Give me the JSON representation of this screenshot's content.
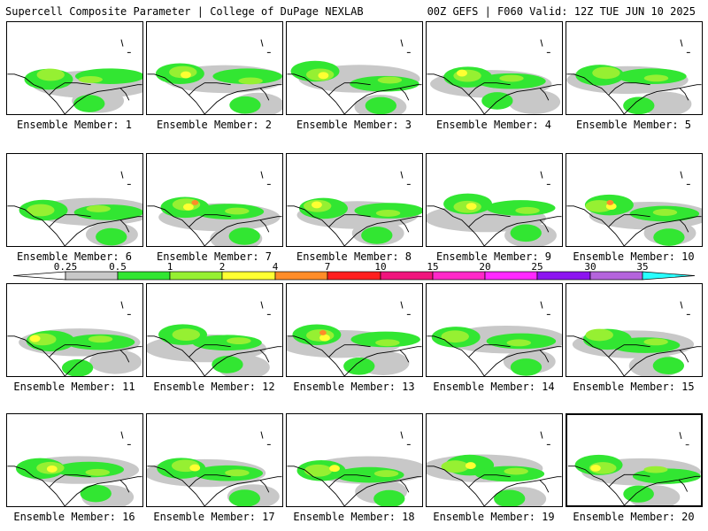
{
  "header": {
    "left": "Supercell Composite Parameter | College of DuPage NEXLAB",
    "right": "00Z GEFS | F060 Valid: 12Z TUE JUN 10 2025"
  },
  "members": [
    {
      "label": "Ensemble Member: 1",
      "selected": false
    },
    {
      "label": "Ensemble Member: 2",
      "selected": false
    },
    {
      "label": "Ensemble Member: 3",
      "selected": false
    },
    {
      "label": "Ensemble Member: 4",
      "selected": false
    },
    {
      "label": "Ensemble Member: 5",
      "selected": false
    },
    {
      "label": "Ensemble Member: 6",
      "selected": false
    },
    {
      "label": "Ensemble Member: 7",
      "selected": false
    },
    {
      "label": "Ensemble Member: 8",
      "selected": false
    },
    {
      "label": "Ensemble Member: 9",
      "selected": false
    },
    {
      "label": "Ensemble Member: 10",
      "selected": false
    },
    {
      "label": "Ensemble Member: 11",
      "selected": false
    },
    {
      "label": "Ensemble Member: 12",
      "selected": false
    },
    {
      "label": "Ensemble Member: 13",
      "selected": false
    },
    {
      "label": "Ensemble Member: 14",
      "selected": false
    },
    {
      "label": "Ensemble Member: 15",
      "selected": false
    },
    {
      "label": "Ensemble Member: 16",
      "selected": false
    },
    {
      "label": "Ensemble Member: 17",
      "selected": false
    },
    {
      "label": "Ensemble Member: 18",
      "selected": false
    },
    {
      "label": "Ensemble Member: 19",
      "selected": false
    },
    {
      "label": "Ensemble Member: 20",
      "selected": true
    }
  ],
  "legend": {
    "ticks": [
      "0.25",
      "0.5",
      "1",
      "2",
      "4",
      "7",
      "10",
      "15",
      "20",
      "25",
      "30",
      "35"
    ],
    "colors": [
      "#c8c8c8",
      "#32e632",
      "#96f032",
      "#ffff32",
      "#ff8c28",
      "#ff1e1e",
      "#f0147d",
      "#ff28c8",
      "#ff28ff",
      "#8c14f0",
      "#b464dc",
      "#28ffff"
    ]
  }
}
